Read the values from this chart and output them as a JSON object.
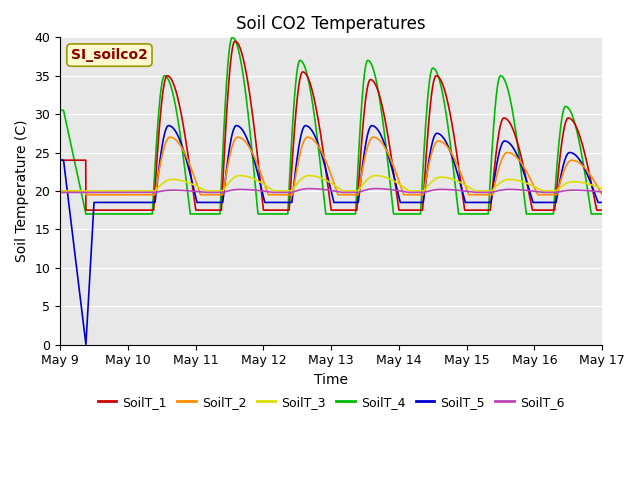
{
  "title": "Soil CO2 Temperatures",
  "xlabel": "Time",
  "ylabel": "Soil Temperature (C)",
  "xlim": [
    0,
    8
  ],
  "ylim": [
    0,
    40
  ],
  "xtick_positions": [
    0,
    1,
    2,
    3,
    4,
    5,
    6,
    7,
    8
  ],
  "xtick_labels": [
    "May 9",
    "May 10",
    "May 11",
    "May 12",
    "May 13",
    "May 14",
    "May 15",
    "May 16",
    "May 17"
  ],
  "ytick_positions": [
    0,
    5,
    10,
    15,
    20,
    25,
    30,
    35,
    40
  ],
  "annotation_text": "SI_soilco2",
  "bg_color": "#E8E8E8",
  "fig_color": "#FFFFFF",
  "line_colors": [
    "#CC0000",
    "#FF8C00",
    "#DDDD00",
    "#00BB00",
    "#0000CC",
    "#BB44BB"
  ],
  "line_labels": [
    "SoilT_1",
    "SoilT_2",
    "SoilT_3",
    "SoilT_4",
    "SoilT_5",
    "SoilT_6"
  ],
  "title_fontsize": 12,
  "axis_label_fontsize": 10
}
